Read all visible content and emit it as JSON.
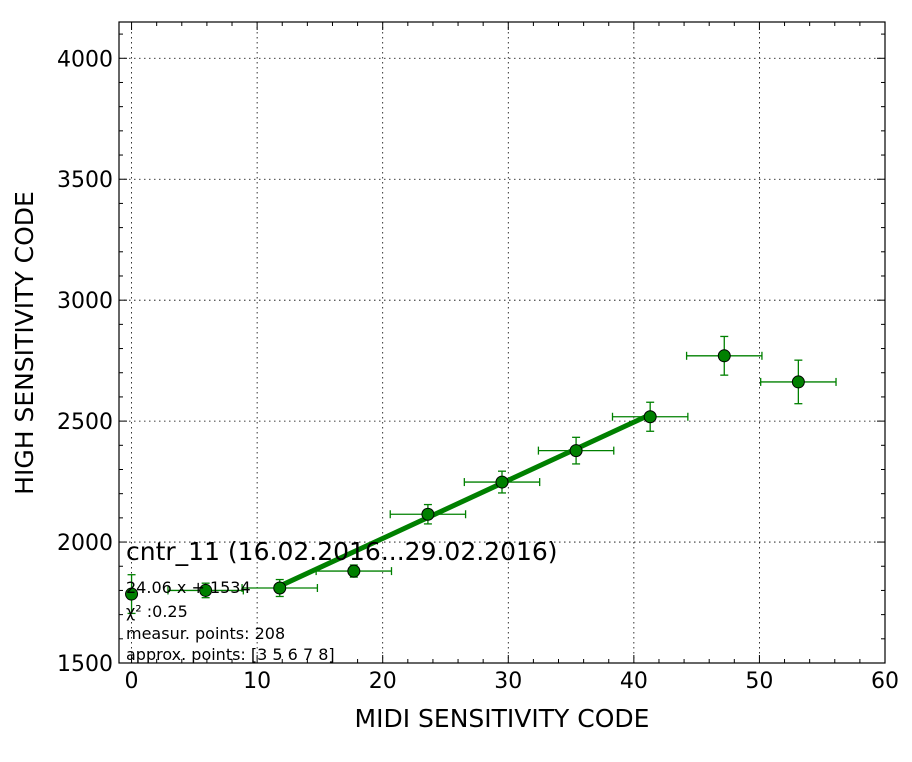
{
  "chart_data": {
    "type": "scatter",
    "xlabel": "MIDI SENSITIVITY CODE",
    "ylabel": "HIGH SENSITIVITY CODE",
    "xlim": [
      -1,
      60
    ],
    "ylim": [
      1500,
      4150
    ],
    "x_ticks": [
      0,
      10,
      20,
      30,
      40,
      50,
      60
    ],
    "y_ticks": [
      1500,
      2000,
      2500,
      3000,
      3500,
      4000
    ],
    "grid": true,
    "colors": {
      "series": "#008000",
      "marker_edge": "#000000"
    },
    "series": [
      {
        "points": [
          {
            "x": 0,
            "y": 1785,
            "xerr": 0,
            "yerr": 80
          },
          {
            "x": 5.9,
            "y": 1800,
            "xerr": 3.0,
            "yerr": 30
          },
          {
            "x": 11.8,
            "y": 1810,
            "xerr": 3.0,
            "yerr": 35
          },
          {
            "x": 17.7,
            "y": 1880,
            "xerr": 3.0,
            "yerr": 25
          },
          {
            "x": 23.6,
            "y": 2115,
            "xerr": 3.0,
            "yerr": 40
          },
          {
            "x": 29.5,
            "y": 2248,
            "xerr": 3.0,
            "yerr": 45
          },
          {
            "x": 35.4,
            "y": 2378,
            "xerr": 3.0,
            "yerr": 55
          },
          {
            "x": 41.3,
            "y": 2518,
            "xerr": 3.0,
            "yerr": 60
          },
          {
            "x": 47.2,
            "y": 2770,
            "xerr": 3.0,
            "yerr": 80
          },
          {
            "x": 53.1,
            "y": 2662,
            "xerr": 3.0,
            "yerr": 90
          }
        ]
      }
    ],
    "fit_line": {
      "x": [
        11.8,
        41.3
      ],
      "y": [
        1818,
        2527
      ]
    },
    "annotations": {
      "title": "cntr_11 (16.02.2016...29.02.2016)",
      "equation": "24.06 x + 1534",
      "chi2": "χ² :0.25",
      "measur_points": "measur. points: 208",
      "approx_points": "approx. points: [3 5 6 7 8]"
    }
  }
}
